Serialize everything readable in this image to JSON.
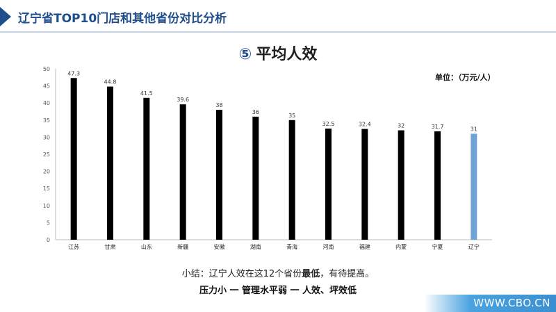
{
  "header": {
    "title": "辽宁省TOP10门店和其他省份对比分析"
  },
  "chart_heading": {
    "number": "⑤",
    "text": "平均人效"
  },
  "unit_label": "单位：（万元/人）",
  "chart_data": {
    "type": "bar",
    "categories": [
      "江苏",
      "甘肃",
      "山东",
      "新疆",
      "安徽",
      "湖南",
      "青海",
      "河南",
      "福建",
      "内蒙",
      "宁夏",
      "辽宁"
    ],
    "values": [
      47.3,
      44.8,
      41.5,
      39.6,
      38,
      36,
      35,
      32.5,
      32.4,
      32,
      31.7,
      31
    ],
    "data_labels": [
      "47.3",
      "44.8",
      "41.5",
      "39.6",
      "38",
      "36",
      "35",
      "32.5",
      "32.4",
      "32",
      "31.7",
      "31"
    ],
    "ylim": [
      0,
      50
    ],
    "yticks": [
      0,
      5,
      10,
      15,
      20,
      25,
      30,
      35,
      40,
      45,
      50
    ],
    "grid": false,
    "colors": {
      "default": "#000000",
      "highlight": "#6fa3d6"
    },
    "highlight_category": "辽宁"
  },
  "summary": {
    "line1_prefix": "小结：辽宁人效在这12个省份",
    "line1_bold": "最低",
    "line1_suffix": "，有待提高。",
    "line2": "压力小 一 管理水平弱 一 人效、坪效低"
  },
  "watermark": "WWW.CBO.CN"
}
